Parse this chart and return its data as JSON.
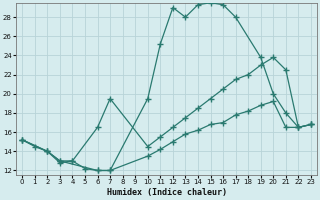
{
  "xlabel": "Humidex (Indice chaleur)",
  "background_color": "#d6ecee",
  "grid_color": "#b8d4d8",
  "line_color": "#2a7a70",
  "xlim": [
    -0.5,
    23.5
  ],
  "ylim": [
    11.5,
    29.5
  ],
  "xticks": [
    0,
    1,
    2,
    3,
    4,
    5,
    6,
    7,
    8,
    9,
    10,
    11,
    12,
    13,
    14,
    15,
    16,
    17,
    18,
    19,
    20,
    21,
    22,
    23
  ],
  "yticks": [
    12,
    14,
    16,
    18,
    20,
    22,
    24,
    26,
    28
  ],
  "line1_x": [
    0,
    1,
    2,
    3,
    4,
    5,
    6,
    7,
    10,
    11,
    12,
    13,
    14,
    15,
    16,
    17,
    19,
    20,
    21,
    22,
    23
  ],
  "line1_y": [
    15.2,
    14.5,
    14.0,
    12.8,
    13.0,
    12.2,
    12.0,
    12.0,
    19.5,
    25.2,
    29.0,
    28.0,
    29.3,
    29.5,
    29.3,
    28.0,
    23.8,
    20.0,
    18.0,
    16.5,
    16.8
  ],
  "line2_x": [
    0,
    2,
    3,
    4,
    6,
    7,
    10,
    11,
    12,
    13,
    14,
    15,
    16,
    17,
    18,
    19,
    20,
    21,
    22,
    23
  ],
  "line2_y": [
    15.2,
    14.0,
    13.0,
    13.0,
    16.5,
    19.5,
    14.5,
    15.5,
    16.5,
    17.5,
    18.5,
    19.5,
    20.5,
    21.5,
    22.0,
    23.0,
    23.8,
    22.5,
    16.5,
    16.8
  ],
  "line3_x": [
    0,
    2,
    3,
    6,
    7,
    10,
    11,
    12,
    13,
    14,
    15,
    16,
    17,
    18,
    19,
    20,
    21,
    22,
    23
  ],
  "line3_y": [
    15.2,
    14.0,
    13.0,
    12.0,
    12.0,
    13.5,
    14.2,
    15.0,
    15.8,
    16.2,
    16.8,
    17.0,
    17.8,
    18.2,
    18.8,
    19.2,
    16.5,
    16.5,
    16.8
  ]
}
